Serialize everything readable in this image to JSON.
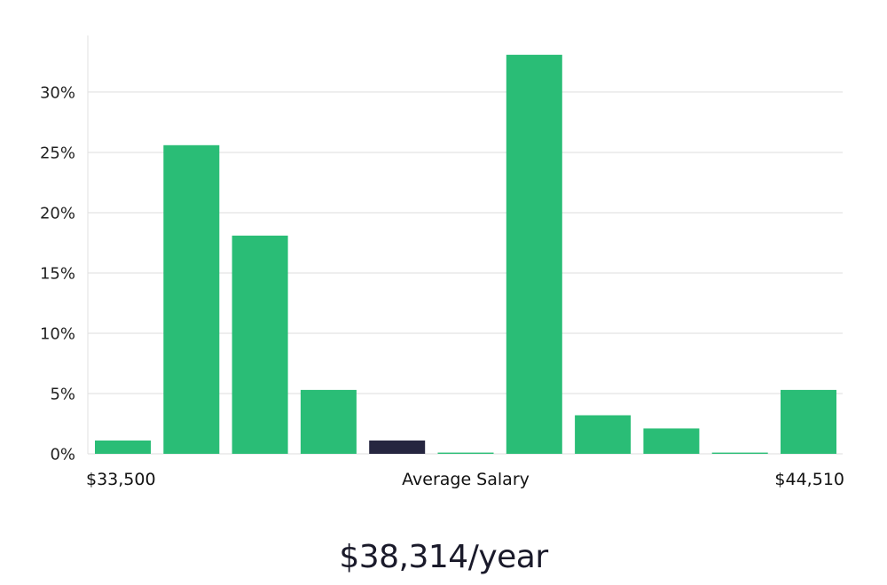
{
  "chart_data": {
    "type": "bar",
    "categories": [
      "",
      "",
      "",
      "",
      "",
      "",
      "",
      "",
      "",
      "",
      ""
    ],
    "values": [
      1.1,
      25.6,
      18.1,
      5.3,
      1.1,
      0.1,
      33.1,
      3.2,
      2.1,
      0.1,
      5.3
    ],
    "highlight_index": 4,
    "ylim": [
      0,
      34.7
    ],
    "yticks": [
      0,
      5,
      10,
      15,
      20,
      25,
      30
    ],
    "ytick_labels": [
      "0%",
      "5%",
      "10%",
      "15%",
      "20%",
      "25%",
      "30%"
    ],
    "xlabel_left": "$33,500",
    "xlabel_center": "Average Salary",
    "xlabel_right": "$44,510",
    "grid": true,
    "colors": {
      "bar": "#2abd76",
      "highlight": "#262640",
      "grid": "#dddddd"
    }
  },
  "summary": {
    "salary": "$38,314/year"
  }
}
